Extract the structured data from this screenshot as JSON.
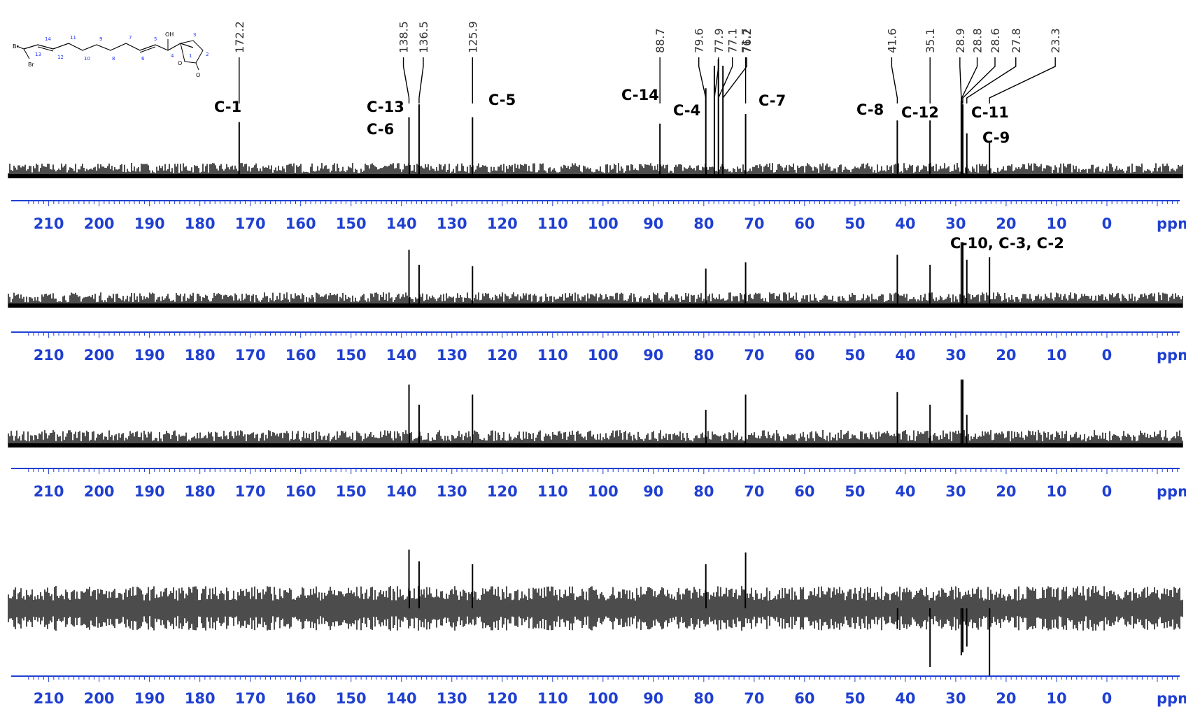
{
  "chart_data": {
    "type": "nmr-stacked-spectra",
    "x_unit": "ppm",
    "xlim": [
      218,
      -15
    ],
    "axis_color": "#1f3fd1",
    "ticks": [
      210,
      200,
      190,
      180,
      170,
      160,
      150,
      140,
      130,
      120,
      110,
      100,
      90,
      80,
      70,
      60,
      50,
      40,
      30,
      20,
      10,
      0
    ],
    "peak_values": [
      {
        "text": "172.2",
        "ppm": 172.2
      },
      {
        "text": "138.5",
        "ppm": 138.5
      },
      {
        "text": "136.5",
        "ppm": 136.5
      },
      {
        "text": "125.9",
        "ppm": 125.9
      },
      {
        "text": "88.7",
        "ppm": 88.7
      },
      {
        "text": "79.6",
        "ppm": 79.6
      },
      {
        "text": "77.9",
        "ppm": 77.9
      },
      {
        "text": "77.1",
        "ppm": 77.1
      },
      {
        "text": "76.2",
        "ppm": 76.2
      },
      {
        "text": "71.7",
        "ppm": 71.7
      },
      {
        "text": "41.6",
        "ppm": 41.6
      },
      {
        "text": "35.1",
        "ppm": 35.1
      },
      {
        "text": "28.9",
        "ppm": 28.9
      },
      {
        "text": "28.8",
        "ppm": 28.8
      },
      {
        "text": "28.6",
        "ppm": 28.6
      },
      {
        "text": "27.8",
        "ppm": 27.8
      },
      {
        "text": "23.3",
        "ppm": 23.3
      }
    ],
    "assignments": [
      {
        "text": "C-1",
        "ppm": 172.2
      },
      {
        "text": "C-13",
        "ppm": 138.5
      },
      {
        "text": "C-6",
        "ppm": 136.5
      },
      {
        "text": "C-5",
        "ppm": 125.9
      },
      {
        "text": "C-14",
        "ppm": 88.7
      },
      {
        "text": "C-4",
        "ppm": 79.6
      },
      {
        "text": "C-7",
        "ppm": 71.7
      },
      {
        "text": "C-8",
        "ppm": 41.6
      },
      {
        "text": "C-12",
        "ppm": 35.1
      },
      {
        "text": "C-11",
        "ppm": 27.8
      },
      {
        "text": "C-9",
        "ppm": 23.3
      },
      {
        "text": "C-10, C-3, C-2",
        "ppm": 28.7
      }
    ],
    "spectra": [
      {
        "peaks": [
          {
            "ppm": 172.2,
            "height": 0.35
          },
          {
            "ppm": 138.5,
            "height": 0.38
          },
          {
            "ppm": 136.5,
            "height": 0.46
          },
          {
            "ppm": 125.9,
            "height": 0.38
          },
          {
            "ppm": 88.7,
            "height": 0.34
          },
          {
            "ppm": 79.6,
            "height": 0.56
          },
          {
            "ppm": 77.9,
            "height": 0.7
          },
          {
            "ppm": 77.1,
            "height": 0.74
          },
          {
            "ppm": 76.2,
            "height": 0.7
          },
          {
            "ppm": 71.7,
            "height": 0.4
          },
          {
            "ppm": 41.6,
            "height": 0.36
          },
          {
            "ppm": 35.1,
            "height": 0.36
          },
          {
            "ppm": 28.9,
            "height": 0.48
          },
          {
            "ppm": 28.8,
            "height": 0.48
          },
          {
            "ppm": 28.6,
            "height": 0.46
          },
          {
            "ppm": 27.8,
            "height": 0.28
          },
          {
            "ppm": 23.3,
            "height": 0.22
          }
        ]
      },
      {
        "peaks": [
          {
            "ppm": 138.5,
            "height": 0.46
          },
          {
            "ppm": 136.5,
            "height": 0.34
          },
          {
            "ppm": 125.9,
            "height": 0.33
          },
          {
            "ppm": 79.6,
            "height": 0.31
          },
          {
            "ppm": 71.7,
            "height": 0.36
          },
          {
            "ppm": 41.6,
            "height": 0.42
          },
          {
            "ppm": 35.1,
            "height": 0.34
          },
          {
            "ppm": 28.9,
            "height": 0.52
          },
          {
            "ppm": 28.6,
            "height": 0.52
          },
          {
            "ppm": 27.8,
            "height": 0.38
          },
          {
            "ppm": 23.3,
            "height": 0.4
          }
        ]
      },
      {
        "peaks": [
          {
            "ppm": 138.5,
            "height": 0.5
          },
          {
            "ppm": 136.5,
            "height": 0.34
          },
          {
            "ppm": 125.9,
            "height": 0.42
          },
          {
            "ppm": 79.6,
            "height": 0.3
          },
          {
            "ppm": 71.7,
            "height": 0.42
          },
          {
            "ppm": 41.6,
            "height": 0.44
          },
          {
            "ppm": 35.1,
            "height": 0.34
          },
          {
            "ppm": 28.9,
            "height": 0.54
          },
          {
            "ppm": 28.6,
            "height": 0.54
          },
          {
            "ppm": 27.8,
            "height": 0.26
          }
        ]
      },
      {
        "peaks": [
          {
            "ppm": 138.5,
            "height": 0.4
          },
          {
            "ppm": 136.5,
            "height": 0.32
          },
          {
            "ppm": 125.9,
            "height": 0.3
          },
          {
            "ppm": 79.6,
            "height": 0.3
          },
          {
            "ppm": 71.7,
            "height": 0.38
          },
          {
            "ppm": 41.6,
            "height": -0.14
          },
          {
            "ppm": 35.1,
            "height": -0.4
          },
          {
            "ppm": 28.9,
            "height": -0.32
          },
          {
            "ppm": 28.6,
            "height": -0.3
          },
          {
            "ppm": 27.8,
            "height": -0.26
          },
          {
            "ppm": 23.3,
            "height": -0.46
          }
        ]
      }
    ]
  },
  "structure": {
    "atom_labels": [
      "Br",
      "Br",
      "OH",
      "O",
      "O"
    ],
    "numbers": [
      "14",
      "13",
      "12",
      "11",
      "10",
      "9",
      "8",
      "7",
      "6",
      "5",
      "4",
      "3",
      "2",
      "1"
    ]
  }
}
